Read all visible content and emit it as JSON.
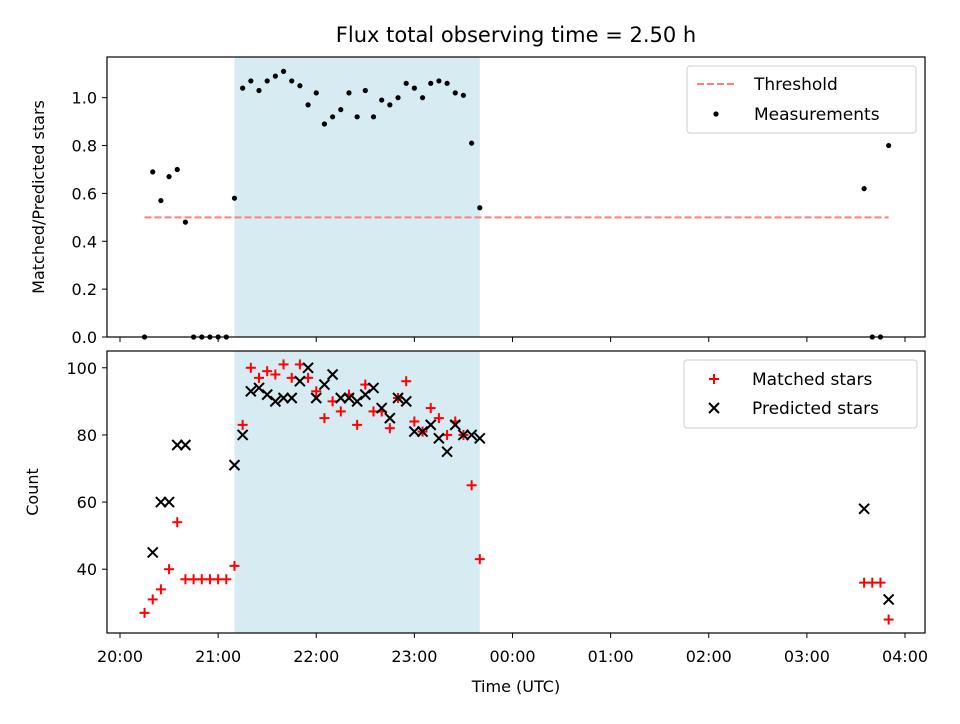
{
  "title": "Flux total observing time = 2.50 h",
  "chart_data": [
    {
      "type": "scatter",
      "ylabel": "Matched/Predicted stars",
      "ylim": [
        0,
        1.17
      ],
      "xlim": [
        "20:00",
        "04:00"
      ],
      "yticks": [
        "0.0",
        "0.2",
        "0.4",
        "0.6",
        "0.8",
        "1.0"
      ],
      "legend_position": "top-right",
      "highlight_span": [
        "21:10",
        "23:40"
      ],
      "threshold": {
        "name": "Threshold",
        "value": 0.5,
        "x_start": "20:15",
        "x_end": "03:50",
        "color": "#ff7f7f",
        "style": "dashed"
      },
      "series": [
        {
          "name": "Measurements",
          "marker": "dot",
          "color": "#000000",
          "points": [
            [
              "20:15",
              0.0
            ],
            [
              "20:20",
              0.69
            ],
            [
              "20:25",
              0.57
            ],
            [
              "20:30",
              0.67
            ],
            [
              "20:35",
              0.7
            ],
            [
              "20:40",
              0.48
            ],
            [
              "20:45",
              0.0
            ],
            [
              "20:50",
              0.0
            ],
            [
              "20:55",
              0.0
            ],
            [
              "21:00",
              0.0
            ],
            [
              "21:05",
              0.0
            ],
            [
              "21:10",
              0.58
            ],
            [
              "21:15",
              1.04
            ],
            [
              "21:20",
              1.07
            ],
            [
              "21:25",
              1.03
            ],
            [
              "21:30",
              1.07
            ],
            [
              "21:35",
              1.09
            ],
            [
              "21:40",
              1.11
            ],
            [
              "21:45",
              1.07
            ],
            [
              "21:50",
              1.05
            ],
            [
              "21:55",
              0.97
            ],
            [
              "22:00",
              1.02
            ],
            [
              "22:05",
              0.89
            ],
            [
              "22:10",
              0.92
            ],
            [
              "22:15",
              0.95
            ],
            [
              "22:20",
              1.02
            ],
            [
              "22:25",
              0.92
            ],
            [
              "22:30",
              1.03
            ],
            [
              "22:35",
              0.92
            ],
            [
              "22:40",
              0.99
            ],
            [
              "22:45",
              0.97
            ],
            [
              "22:50",
              1.0
            ],
            [
              "22:55",
              1.06
            ],
            [
              "23:00",
              1.04
            ],
            [
              "23:05",
              1.0
            ],
            [
              "23:10",
              1.06
            ],
            [
              "23:15",
              1.07
            ],
            [
              "23:20",
              1.06
            ],
            [
              "23:25",
              1.02
            ],
            [
              "23:30",
              1.01
            ],
            [
              "23:35",
              0.81
            ],
            [
              "23:40",
              0.54
            ],
            [
              "03:35",
              0.62
            ],
            [
              "03:40",
              0.0
            ],
            [
              "03:45",
              0.0
            ],
            [
              "03:50",
              0.8
            ]
          ]
        }
      ]
    },
    {
      "type": "scatter",
      "xlabel": "Time (UTC)",
      "ylabel": "Count",
      "ylim": [
        21,
        105
      ],
      "xlim": [
        "20:00",
        "04:00"
      ],
      "xticks": [
        "20:00",
        "21:00",
        "22:00",
        "23:00",
        "00:00",
        "01:00",
        "02:00",
        "03:00",
        "04:00"
      ],
      "yticks": [
        "40",
        "60",
        "80",
        "100"
      ],
      "legend_position": "top-right",
      "highlight_span": [
        "21:10",
        "23:40"
      ],
      "series": [
        {
          "name": "Matched stars",
          "marker": "plus",
          "color": "#ff0000",
          "points": [
            [
              "20:15",
              27
            ],
            [
              "20:20",
              31
            ],
            [
              "20:25",
              34
            ],
            [
              "20:30",
              40
            ],
            [
              "20:35",
              54
            ],
            [
              "20:40",
              37
            ],
            [
              "20:45",
              37
            ],
            [
              "20:50",
              37
            ],
            [
              "20:55",
              37
            ],
            [
              "21:00",
              37
            ],
            [
              "21:05",
              37
            ],
            [
              "21:10",
              41
            ],
            [
              "21:15",
              83
            ],
            [
              "21:20",
              100
            ],
            [
              "21:25",
              97
            ],
            [
              "21:30",
              99
            ],
            [
              "21:35",
              98
            ],
            [
              "21:40",
              101
            ],
            [
              "21:45",
              97
            ],
            [
              "21:50",
              101
            ],
            [
              "21:55",
              97
            ],
            [
              "22:00",
              93
            ],
            [
              "22:05",
              85
            ],
            [
              "22:10",
              90
            ],
            [
              "22:15",
              87
            ],
            [
              "22:20",
              92
            ],
            [
              "22:25",
              83
            ],
            [
              "22:30",
              95
            ],
            [
              "22:35",
              87
            ],
            [
              "22:40",
              87
            ],
            [
              "22:45",
              82
            ],
            [
              "22:50",
              91
            ],
            [
              "22:55",
              96
            ],
            [
              "23:00",
              84
            ],
            [
              "23:05",
              81
            ],
            [
              "23:10",
              88
            ],
            [
              "23:15",
              85
            ],
            [
              "23:20",
              80
            ],
            [
              "23:25",
              84
            ],
            [
              "23:30",
              80
            ],
            [
              "23:35",
              65
            ],
            [
              "23:40",
              43
            ],
            [
              "03:35",
              36
            ],
            [
              "03:40",
              36
            ],
            [
              "03:45",
              36
            ],
            [
              "03:50",
              25
            ]
          ]
        },
        {
          "name": "Predicted stars",
          "marker": "x",
          "color": "#000000",
          "points": [
            [
              "20:20",
              45
            ],
            [
              "20:25",
              60
            ],
            [
              "20:30",
              60
            ],
            [
              "20:35",
              77
            ],
            [
              "20:40",
              77
            ],
            [
              "21:10",
              71
            ],
            [
              "21:15",
              80
            ],
            [
              "21:20",
              93
            ],
            [
              "21:25",
              94
            ],
            [
              "21:30",
              92
            ],
            [
              "21:35",
              90
            ],
            [
              "21:40",
              91
            ],
            [
              "21:45",
              91
            ],
            [
              "21:50",
              96
            ],
            [
              "21:55",
              100
            ],
            [
              "22:00",
              91
            ],
            [
              "22:05",
              95
            ],
            [
              "22:10",
              98
            ],
            [
              "22:15",
              91
            ],
            [
              "22:20",
              91
            ],
            [
              "22:25",
              90
            ],
            [
              "22:30",
              92
            ],
            [
              "22:35",
              94
            ],
            [
              "22:40",
              88
            ],
            [
              "22:45",
              85
            ],
            [
              "22:50",
              91
            ],
            [
              "22:55",
              90
            ],
            [
              "23:00",
              81
            ],
            [
              "23:05",
              81
            ],
            [
              "23:10",
              83
            ],
            [
              "23:15",
              79
            ],
            [
              "23:20",
              75
            ],
            [
              "23:25",
              83
            ],
            [
              "23:30",
              80
            ],
            [
              "23:35",
              80
            ],
            [
              "23:40",
              79
            ],
            [
              "03:35",
              58
            ],
            [
              "03:50",
              31
            ]
          ]
        }
      ]
    }
  ]
}
